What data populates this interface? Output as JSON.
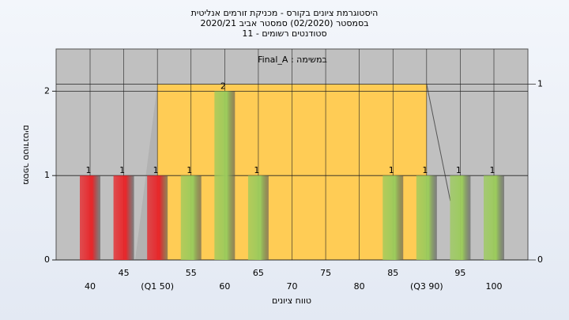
{
  "chart_data": {
    "type": "bar",
    "title": [
      "היסטוגרמת ציונים בקורס - מכניקת זורמים אנליטית",
      "בסמסטר  (02/2020)  סמסטר אביב 2020/21",
      "סטודנטים רשומים - 11"
    ],
    "subtitle": "במשימה : Final_A",
    "x_label": "טווח ציונים",
    "y_label": "מספר סטודנטים",
    "categories": [
      "40",
      "45",
      "(Q1 50)",
      "55",
      "60",
      "65",
      "70",
      "75",
      "80",
      "85",
      "(Q3 90)",
      "95",
      "100"
    ],
    "values": [
      1,
      1,
      1,
      1,
      2,
      1,
      0,
      0,
      0,
      1,
      1,
      1,
      1
    ],
    "colors": [
      "#e8262a",
      "#e8262a",
      "#e8262a",
      "#9ccb5c",
      "#9ccb5c",
      "#9ccb5c",
      "#9ccb5c",
      "#9ccb5c",
      "#9ccb5c",
      "#9ccb5c",
      "#9ccb5c",
      "#9ccb5c",
      "#9ccb5c"
    ],
    "quartile_box": {
      "from_index": 2,
      "to_index": 10,
      "height": 1,
      "color": "#ffcc55"
    },
    "ylim": [
      0,
      2.5
    ],
    "yticks": [
      0,
      1,
      2
    ],
    "y2lim": [
      0,
      1.2
    ],
    "y2ticks": [
      0,
      1
    ],
    "grid": true
  }
}
